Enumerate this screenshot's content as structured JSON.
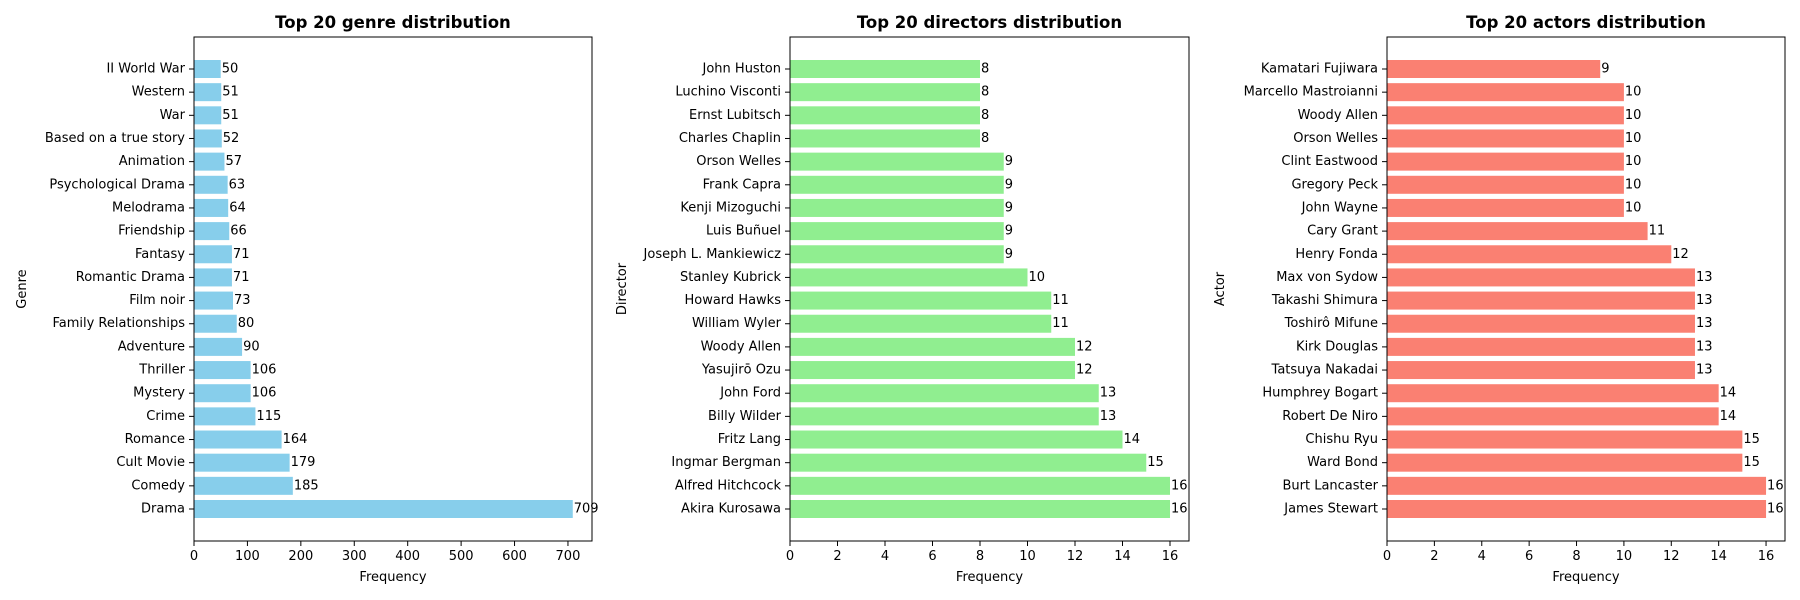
{
  "chart_data": [
    {
      "type": "bar",
      "orientation": "horizontal",
      "title": "Top 20 genre distribution",
      "xlabel": "Frequency",
      "ylabel": "Genre",
      "xlim": [
        0,
        745
      ],
      "xticks": [
        0,
        100,
        200,
        300,
        400,
        500,
        600,
        700
      ],
      "grid": false,
      "color": "#87CEEB",
      "categories": [
        "Drama",
        "Comedy",
        "Cult Movie",
        "Romance",
        "Crime",
        "Mystery",
        "Thriller",
        "Adventure",
        "Family Relationships",
        "Film noir",
        "Romantic Drama",
        "Fantasy",
        "Friendship",
        "Melodrama",
        "Psychological Drama",
        "Animation",
        "Based on a true story",
        "War",
        "Western",
        "II World War"
      ],
      "values": [
        709,
        185,
        179,
        164,
        115,
        106,
        106,
        90,
        80,
        73,
        71,
        71,
        66,
        64,
        63,
        57,
        52,
        51,
        51,
        50
      ]
    },
    {
      "type": "bar",
      "orientation": "horizontal",
      "title": "Top 20 directors distribution",
      "xlabel": "Frequency",
      "ylabel": "Director",
      "xlim": [
        0,
        16.8
      ],
      "xticks": [
        0,
        2,
        4,
        6,
        8,
        10,
        12,
        14,
        16
      ],
      "grid": false,
      "color": "#90EE90",
      "categories": [
        "Akira Kurosawa",
        "Alfred Hitchcock",
        "Ingmar Bergman",
        "Fritz Lang",
        "Billy Wilder",
        "John Ford",
        "Yasujirō Ozu",
        "Woody Allen",
        "William Wyler",
        "Howard Hawks",
        "Stanley Kubrick",
        "Joseph L. Mankiewicz",
        "Luis Buñuel",
        "Kenji Mizoguchi",
        "Frank Capra",
        "Orson Welles",
        "Charles Chaplin",
        "Ernst Lubitsch",
        "Luchino Visconti",
        "John Huston"
      ],
      "values": [
        16,
        16,
        15,
        14,
        13,
        13,
        12,
        12,
        11,
        11,
        10,
        9,
        9,
        9,
        9,
        9,
        8,
        8,
        8,
        8
      ]
    },
    {
      "type": "bar",
      "orientation": "horizontal",
      "title": "Top 20 actors distribution",
      "xlabel": "Frequency",
      "ylabel": "Actor",
      "xlim": [
        0,
        16.8
      ],
      "xticks": [
        0,
        2,
        4,
        6,
        8,
        10,
        12,
        14,
        16
      ],
      "grid": false,
      "color": "#FA8072",
      "categories": [
        "James Stewart",
        "Burt Lancaster",
        "Ward Bond",
        "Chishu Ryu",
        "Robert De Niro",
        "Humphrey Bogart",
        "Tatsuya Nakadai",
        "Kirk Douglas",
        "Toshirô Mifune",
        "Takashi Shimura",
        "Max von Sydow",
        "Henry Fonda",
        "Cary Grant",
        "John Wayne",
        "Gregory Peck",
        "Clint Eastwood",
        "Orson Welles",
        "Woody Allen",
        "Marcello Mastroianni",
        "Kamatari Fujiwara"
      ],
      "values": [
        16,
        16,
        15,
        15,
        14,
        14,
        13,
        13,
        13,
        13,
        13,
        12,
        11,
        10,
        10,
        10,
        10,
        10,
        10,
        9
      ]
    }
  ]
}
